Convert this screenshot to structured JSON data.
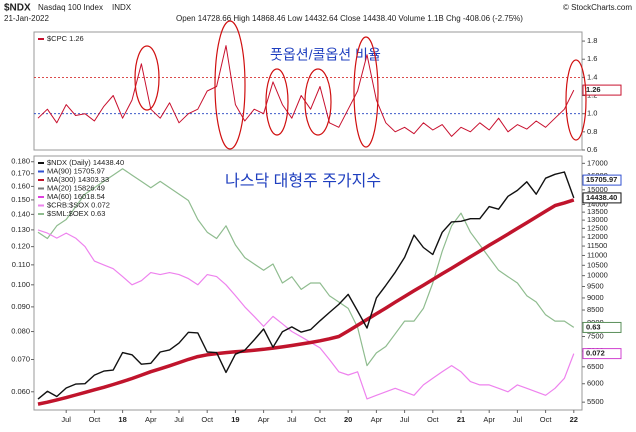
{
  "header": {
    "symbol": "$NDX",
    "name": "Nasdaq 100 Index",
    "exchange": "INDX",
    "date": "21-Jan-2022",
    "quote": "Open 14728.66 High 14868.46 Low 14432.64 Close 14438.40 Volume 1.1B Chg -408.06 (-2.75%)",
    "copyright": "© StockCharts.com"
  },
  "chart_data": [
    {
      "type": "line",
      "annotation": "풋옵션/콜옵션 비율",
      "legend": [
        {
          "label": "$CPC 1.26",
          "color": "#c8102e"
        }
      ],
      "series": [
        {
          "color": "#c8102e",
          "values": [
            0.95,
            1.05,
            0.9,
            1.1,
            0.98,
            1.0,
            0.92,
            1.08,
            1.2,
            0.95,
            1.15,
            1.55,
            1.05,
            0.95,
            1.12,
            0.9,
            1.0,
            1.05,
            1.25,
            1.3,
            1.75,
            1.1,
            0.92,
            1.05,
            1.0,
            1.35,
            1.1,
            0.95,
            1.2,
            1.05,
            1.3,
            0.9,
            0.85,
            1.05,
            1.25,
            1.65,
            1.15,
            0.9,
            0.8,
            0.85,
            0.78,
            0.9,
            0.82,
            0.88,
            0.75,
            0.85,
            0.8,
            0.9,
            0.82,
            0.95,
            0.8,
            0.88,
            0.83,
            0.92,
            0.85,
            0.95,
            1.05,
            1.26
          ]
        }
      ],
      "ylim": [
        0.6,
        1.9
      ],
      "yticks": [
        0.6,
        0.8,
        {
          "value": 1.0,
          "label": "1.0"
        },
        1.2,
        1.4,
        1.6,
        1.8
      ],
      "y_axis_side": "right",
      "reference_lines": [
        {
          "value": 1.4,
          "color": "#d01010"
        },
        {
          "value": 1.0,
          "color": "#2040c0"
        }
      ],
      "end_labels": [
        {
          "value": 1.26,
          "label": "1.26",
          "color": "#c8102e"
        }
      ]
    },
    {
      "type": "line",
      "annotation": "나스닥 대형주 주가지수",
      "log_scale": true,
      "legend": [
        {
          "label": "$NDX (Daily) 14438.40",
          "color": "#111111"
        },
        {
          "label": "MA(90) 15705.97",
          "color": "#3050d0"
        },
        {
          "label": "MA(300) 14303.33",
          "color": "#c0142c"
        },
        {
          "label": "MA(20) 15826.49",
          "color": "#777777"
        },
        {
          "label": "MA(60) 16018.54",
          "color": "#e040e0"
        },
        {
          "label": "$CRB:$SOX 0.072",
          "color": "#ee82ee"
        },
        {
          "label": "$SML:$OEX 0.63",
          "color": "#8fbc8f"
        }
      ],
      "categories": [
        null,
        null,
        null,
        "Jul",
        null,
        null,
        "Oct",
        null,
        null,
        "18",
        null,
        null,
        "Apr",
        null,
        null,
        "Jul",
        null,
        null,
        "Oct",
        null,
        null,
        "19",
        null,
        null,
        "Apr",
        null,
        null,
        "Jul",
        null,
        null,
        "Oct",
        null,
        null,
        "20",
        null,
        null,
        "Apr",
        null,
        null,
        "Jul",
        null,
        null,
        "Oct",
        null,
        null,
        "21",
        null,
        null,
        "Apr",
        null,
        null,
        "Jul",
        null,
        null,
        "Oct",
        null,
        null,
        "22"
      ],
      "series": [
        {
          "color": "#8fbc8f",
          "axis": "y3",
          "width": 1.2,
          "values": [
            0.78,
            0.77,
            0.79,
            0.8,
            0.82,
            0.84,
            0.85,
            0.86,
            0.87,
            0.88,
            0.87,
            0.86,
            0.85,
            0.86,
            0.85,
            0.84,
            0.83,
            0.8,
            0.78,
            0.77,
            0.79,
            0.76,
            0.74,
            0.73,
            0.72,
            0.73,
            0.7,
            0.71,
            0.69,
            0.7,
            0.7,
            0.68,
            0.67,
            0.66,
            0.63,
            0.57,
            0.59,
            0.6,
            0.62,
            0.64,
            0.64,
            0.66,
            0.7,
            0.75,
            0.79,
            0.81,
            0.78,
            0.76,
            0.74,
            0.72,
            0.71,
            0.7,
            0.68,
            0.67,
            0.65,
            0.64,
            0.64,
            0.63
          ]
        },
        {
          "color": "#ee82ee",
          "axis": "y",
          "width": 1.2,
          "values": [
            0.13,
            0.128,
            0.125,
            0.128,
            0.125,
            0.12,
            0.112,
            0.11,
            0.108,
            0.104,
            0.1,
            0.102,
            0.106,
            0.105,
            0.106,
            0.105,
            0.103,
            0.1,
            0.105,
            0.104,
            0.1,
            0.095,
            0.09,
            0.086,
            0.082,
            0.086,
            0.083,
            0.08,
            0.078,
            0.076,
            0.074,
            0.07,
            0.066,
            0.065,
            0.066,
            0.058,
            0.059,
            0.06,
            0.061,
            0.06,
            0.059,
            0.062,
            0.064,
            0.066,
            0.068,
            0.066,
            0.063,
            0.062,
            0.062,
            0.061,
            0.06,
            0.062,
            0.061,
            0.06,
            0.059,
            0.061,
            0.064,
            0.072
          ]
        },
        {
          "color": "#c0142c",
          "axis": "y2",
          "width": 3.5,
          "values": [
            5450,
            5500,
            5560,
            5620,
            5690,
            5760,
            5830,
            5900,
            5980,
            6060,
            6150,
            6250,
            6350,
            6440,
            6530,
            6630,
            6730,
            6820,
            6880,
            6920,
            6950,
            6980,
            7000,
            7030,
            7060,
            7100,
            7140,
            7190,
            7240,
            7290,
            7350,
            7420,
            7500,
            7700,
            7910,
            8130,
            8350,
            8580,
            8820,
            9060,
            9310,
            9560,
            9820,
            10090,
            10360,
            10640,
            10930,
            11230,
            11540,
            11850,
            12170,
            12500,
            12840,
            13190,
            13550,
            13920,
            14100,
            14303.33
          ]
        },
        {
          "color": "#111111",
          "axis": "y2",
          "width": 1.4,
          "values": [
            5580,
            5790,
            5650,
            5880,
            5990,
            6000,
            6250,
            6370,
            6400,
            6950,
            6880,
            6580,
            6610,
            6970,
            7040,
            7270,
            7650,
            7630,
            6970,
            6950,
            6330,
            6900,
            7030,
            7380,
            7770,
            7130,
            7670,
            7850,
            7660,
            7750,
            8080,
            8400,
            8730,
            9150,
            8460,
            7810,
            9000,
            9550,
            10160,
            10900,
            12110,
            11420,
            11050,
            12270,
            12890,
            12930,
            13090,
            13090,
            13860,
            13690,
            14550,
            14960,
            15580,
            14690,
            15850,
            16140,
            16320,
            14438.4
          ]
        }
      ],
      "ylim": [
        0.055,
        0.185
      ],
      "yticks": [
        {
          "value": 0.06,
          "label": "0.060"
        },
        {
          "value": 0.07,
          "label": "0.070"
        },
        {
          "value": 0.08,
          "label": "0.080"
        },
        {
          "value": 0.09,
          "label": "0.090"
        },
        {
          "value": 0.1,
          "label": "0.100"
        },
        {
          "value": 0.11,
          "label": "0.110"
        },
        {
          "value": 0.12,
          "label": "0.120"
        },
        {
          "value": 0.13,
          "label": "0.130"
        },
        {
          "value": 0.14,
          "label": "0.140"
        },
        {
          "value": 0.15,
          "label": "0.150"
        },
        {
          "value": 0.16,
          "label": "0.160"
        },
        {
          "value": 0.17,
          "label": "0.170"
        },
        {
          "value": 0.18,
          "label": "0.180"
        }
      ],
      "y2lim": [
        5300,
        17600
      ],
      "y2ticks": [
        5500,
        6000,
        6500,
        7000,
        7500,
        8000,
        8500,
        9000,
        9500,
        10000,
        10500,
        11000,
        11500,
        12000,
        12500,
        13000,
        13500,
        14000,
        15000,
        16000,
        17000
      ],
      "y3lim": [
        0.5,
        0.9
      ],
      "end_labels": [
        {
          "value": 15705.97,
          "label": "15705.97",
          "axis": "y2",
          "color": "#3050d0"
        },
        {
          "value": 14438.4,
          "label": "14438.40",
          "axis": "y2",
          "color": "#111111"
        },
        {
          "value": 0.63,
          "label": "0.63",
          "axis": "y3",
          "color": "#5a8f5a"
        },
        {
          "value": 0.072,
          "label": "0.072",
          "axis": "y",
          "color": "#d040d0"
        }
      ]
    }
  ]
}
